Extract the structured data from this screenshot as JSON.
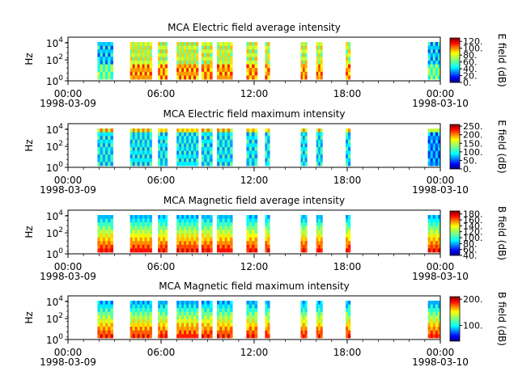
{
  "chart_data": [
    {
      "type": "heatmap",
      "title": "MCA  Electric field average intensity",
      "ylabel": "Hz",
      "yscale": "log",
      "y_tick_labels": [
        {
          "b": "10",
          "e": "0"
        },
        {
          "b": "10",
          "e": "2"
        },
        {
          "b": "10",
          "e": "4"
        }
      ],
      "x_tick_labels": [
        "00:00",
        "06:00",
        "12:00",
        "18:00",
        "00:00"
      ],
      "x_start_date": "1998-03-09",
      "x_end_date": "1998-03-10",
      "colorbar": {
        "label": "E field (dB)",
        "ticks": [
          "0.",
          "20.",
          "40.",
          "60.",
          "80.",
          "100.",
          "120."
        ],
        "range": [
          0,
          130
        ]
      },
      "data_segments_hours": [
        [
          1.9,
          2.9
        ],
        [
          4.0,
          5.4
        ],
        [
          5.8,
          6.4
        ],
        [
          7.0,
          8.4
        ],
        [
          8.6,
          9.3
        ],
        [
          9.6,
          10.6
        ],
        [
          11.5,
          12.2
        ],
        [
          12.7,
          13.0
        ],
        [
          15.0,
          15.4
        ],
        [
          16.0,
          16.4
        ],
        [
          17.9,
          18.2
        ],
        [
          23.2,
          24.0
        ]
      ],
      "intensity": "moderate, 40–120 dB"
    },
    {
      "type": "heatmap",
      "title": "MCA  Electric field maximum intensity",
      "ylabel": "Hz",
      "yscale": "log",
      "y_tick_labels": [
        {
          "b": "10",
          "e": "0"
        },
        {
          "b": "10",
          "e": "2"
        },
        {
          "b": "10",
          "e": "4"
        }
      ],
      "x_tick_labels": [
        "00:00",
        "06:00",
        "12:00",
        "18:00",
        "00:00"
      ],
      "x_start_date": "1998-03-09",
      "x_end_date": "1998-03-10",
      "colorbar": {
        "label": "E field (dB)",
        "ticks": [
          "0.",
          "50.",
          "100.",
          "150.",
          "200.",
          "250."
        ],
        "range": [
          0,
          260
        ]
      },
      "data_segments_hours": [
        [
          1.9,
          2.9
        ],
        [
          4.0,
          5.4
        ],
        [
          5.8,
          6.4
        ],
        [
          7.0,
          8.4
        ],
        [
          8.6,
          9.3
        ],
        [
          9.6,
          10.6
        ],
        [
          11.5,
          12.2
        ],
        [
          12.7,
          13.0
        ],
        [
          15.0,
          15.4
        ],
        [
          16.0,
          16.4
        ],
        [
          17.9,
          18.2
        ],
        [
          23.2,
          24.0
        ]
      ],
      "intensity": "low to moderate, 40–150 dB"
    },
    {
      "type": "heatmap",
      "title": "MCA  Magnetic field average intensity",
      "ylabel": "Hz",
      "yscale": "log",
      "y_tick_labels": [
        {
          "b": "10",
          "e": "0"
        },
        {
          "b": "10",
          "e": "2"
        },
        {
          "b": "10",
          "e": "4"
        }
      ],
      "x_tick_labels": [
        "00:00",
        "06:00",
        "12:00",
        "18:00",
        "00:00"
      ],
      "x_start_date": "1998-03-09",
      "x_end_date": "1998-03-10",
      "colorbar": {
        "label": "B field (dB)",
        "ticks": [
          "40.",
          "60.",
          "80.",
          "100.",
          "120.",
          "140.",
          "160.",
          "180."
        ],
        "range": [
          40,
          190
        ]
      },
      "data_segments_hours": [
        [
          1.9,
          2.9
        ],
        [
          4.0,
          5.4
        ],
        [
          5.8,
          6.4
        ],
        [
          7.0,
          8.4
        ],
        [
          8.6,
          9.3
        ],
        [
          9.6,
          10.6
        ],
        [
          11.5,
          12.2
        ],
        [
          12.7,
          13.0
        ],
        [
          15.0,
          15.4
        ],
        [
          16.0,
          16.4
        ],
        [
          17.9,
          18.2
        ],
        [
          23.2,
          24.0
        ]
      ],
      "intensity": "decreasing with frequency, high at low frequency"
    },
    {
      "type": "heatmap",
      "title": "MCA  Magnetic field maximum intensity",
      "ylabel": "Hz",
      "yscale": "log",
      "y_tick_labels": [
        {
          "b": "10",
          "e": "0"
        },
        {
          "b": "10",
          "e": "2"
        },
        {
          "b": "10",
          "e": "4"
        }
      ],
      "x_tick_labels": [
        "00:00",
        "06:00",
        "12:00",
        "18:00",
        "00:00"
      ],
      "x_start_date": "1998-03-09",
      "x_end_date": "1998-03-10",
      "colorbar": {
        "label": "B field (dB)",
        "ticks": [
          "100.",
          "200."
        ],
        "range": [
          40,
          210
        ]
      },
      "data_segments_hours": [
        [
          1.9,
          2.9
        ],
        [
          4.0,
          5.4
        ],
        [
          5.8,
          6.4
        ],
        [
          7.0,
          8.4
        ],
        [
          8.6,
          9.3
        ],
        [
          9.6,
          10.6
        ],
        [
          11.5,
          12.2
        ],
        [
          12.7,
          13.0
        ],
        [
          15.0,
          15.4
        ],
        [
          16.0,
          16.4
        ],
        [
          17.9,
          18.2
        ],
        [
          23.2,
          24.0
        ]
      ],
      "intensity": "decreasing with frequency, high at low frequency"
    }
  ]
}
